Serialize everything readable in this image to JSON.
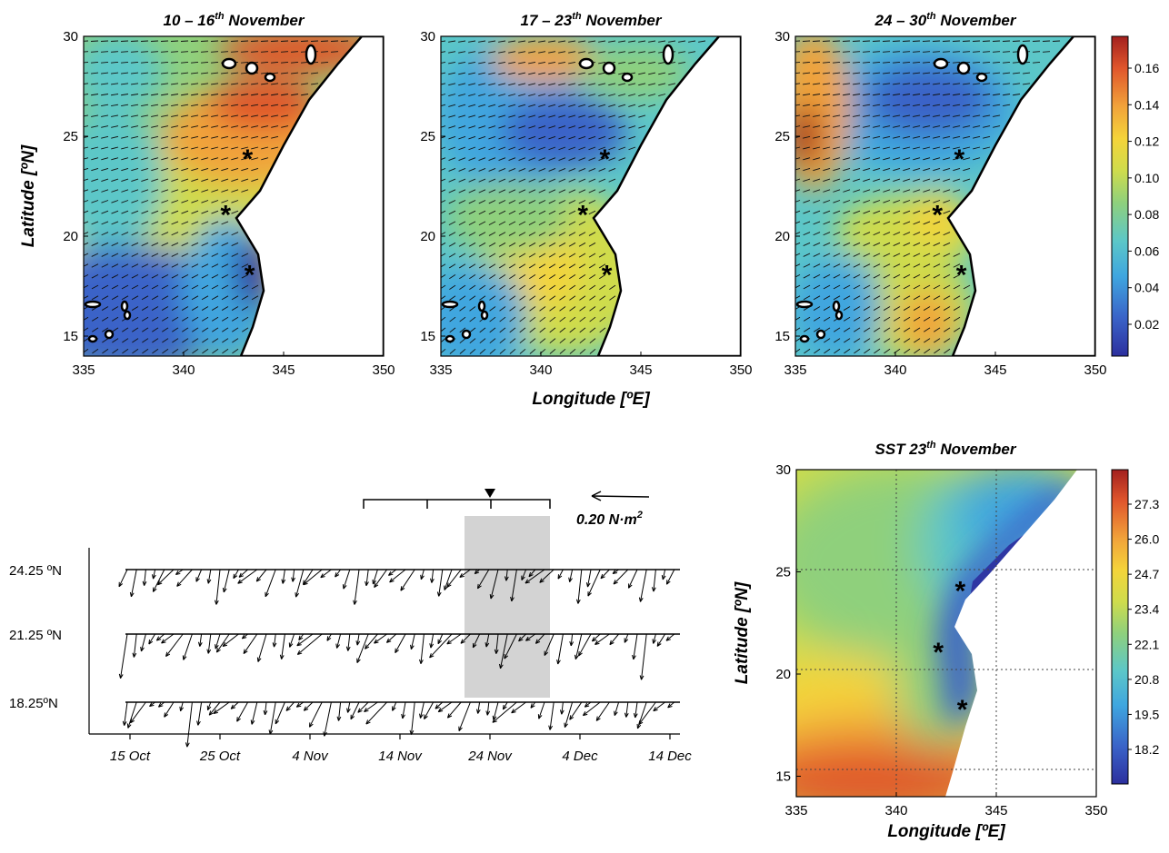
{
  "top_panels": [
    {
      "title_prefix": "10 – 16",
      "title_sup": "th",
      "title_suffix": " November"
    },
    {
      "title_prefix": "17 – 23",
      "title_sup": "th",
      "title_suffix": " November"
    },
    {
      "title_prefix": "24 –  30",
      "title_sup": "th",
      "title_suffix": " November"
    }
  ],
  "map_axes": {
    "xlabel": "Longitude  [ºE]",
    "ylabel": "Latitude  [ºN]",
    "x_ticks": [
      "335",
      "340",
      "345",
      "350"
    ],
    "y_ticks": [
      "15",
      "20",
      "25",
      "30"
    ]
  },
  "stress_colorbar_ticks": [
    "0.02",
    "0.04",
    "0.06",
    "0.08",
    "0.10",
    "0.12",
    "0.14",
    "0.16"
  ],
  "sst_panel": {
    "title_prefix": "SST  23",
    "title_sup": "th",
    "title_suffix": " November",
    "colorbar_ticks": [
      "18.2",
      "19.5",
      "20.8",
      "22.1",
      "23.4",
      "24.7",
      "26.0",
      "27.3"
    ]
  },
  "stick_plot": {
    "rows": [
      "24.25 ºN",
      "21.25 ºN",
      "18.25ºN"
    ],
    "x_ticks": [
      "15 Oct",
      "25 Oct",
      "4 Nov",
      "14 Nov",
      "24 Nov",
      "4 Dec",
      "14 Dec"
    ],
    "scale_label": "0.20 N·m",
    "scale_label_sup": "2"
  },
  "colors": {
    "colormap": [
      "#2c2f9e",
      "#3a63c8",
      "#3fa6df",
      "#5cc7c8",
      "#8fd07c",
      "#cfdc4c",
      "#f4d43a",
      "#f1a33a",
      "#e0562c",
      "#a3201e"
    ],
    "land": "#ffffff",
    "highlight_band": "#d3d3d3"
  },
  "chart_data": [
    {
      "type": "heatmap",
      "title": "10 – 16th November",
      "xlabel": "",
      "ylabel": "Latitude [ºN]",
      "xlim": [
        335,
        350
      ],
      "ylim": [
        14,
        30
      ],
      "clim": [
        0,
        0.17
      ],
      "zones": [
        {
          "lon": 344,
          "lat": 27,
          "value": 0.14
        },
        {
          "lon": 342,
          "lat": 25.5,
          "value": 0.13
        },
        {
          "lon": 340,
          "lat": 24,
          "value": 0.11
        },
        {
          "lon": 337,
          "lat": 22,
          "value": 0.08
        },
        {
          "lon": 343,
          "lat": 19.5,
          "value": 0.02
        },
        {
          "lon": 337,
          "lat": 16,
          "value": 0.04
        }
      ],
      "markers": [
        {
          "lon": 343.2,
          "lat": 24.0
        },
        {
          "lon": 342.1,
          "lat": 21.2
        },
        {
          "lon": 343.3,
          "lat": 18.2
        }
      ]
    },
    {
      "type": "heatmap",
      "title": "17 – 23th November",
      "xlabel": "Longitude [ºE]",
      "ylabel": "",
      "xlim": [
        335,
        350
      ],
      "ylim": [
        14,
        30
      ],
      "clim": [
        0,
        0.17
      ],
      "zones": [
        {
          "lon": 340.5,
          "lat": 25.5,
          "value": 0.02
        },
        {
          "lon": 340,
          "lat": 20,
          "value": 0.1
        },
        {
          "lon": 341,
          "lat": 28.5,
          "value": 0.12
        },
        {
          "lon": 337,
          "lat": 17,
          "value": 0.06
        }
      ],
      "markers": [
        {
          "lon": 343.2,
          "lat": 24.0
        },
        {
          "lon": 342.1,
          "lat": 21.2
        },
        {
          "lon": 343.3,
          "lat": 18.2
        }
      ]
    },
    {
      "type": "heatmap",
      "title": "24 – 30th November",
      "xlabel": "",
      "ylabel": "",
      "xlim": [
        335,
        350
      ],
      "ylim": [
        14,
        30
      ],
      "clim": [
        0,
        0.17
      ],
      "zones": [
        {
          "lon": 335.4,
          "lat": 25,
          "value": 0.16
        },
        {
          "lon": 341.5,
          "lat": 26.5,
          "value": 0.03
        },
        {
          "lon": 341.5,
          "lat": 21.5,
          "value": 0.1
        },
        {
          "lon": 341.7,
          "lat": 15.5,
          "value": 0.12
        }
      ],
      "markers": [
        {
          "lon": 343.2,
          "lat": 24.0
        },
        {
          "lon": 342.1,
          "lat": 21.2
        },
        {
          "lon": 343.3,
          "lat": 18.2
        }
      ]
    },
    {
      "type": "heatmap",
      "title": "SST 23th November",
      "xlabel": "Longitude [ºE]",
      "ylabel": "Latitude [ºN]",
      "xlim": [
        335,
        350
      ],
      "ylim": [
        14,
        30
      ],
      "clim": [
        17.5,
        27.9
      ],
      "grid": true,
      "zones": [
        {
          "lon": 337,
          "lat": 15,
          "value": 27.0
        },
        {
          "lon": 341,
          "lat": 23,
          "value": 23.0
        },
        {
          "lon": 343,
          "lat": 21,
          "value": 17.8
        },
        {
          "lon": 346,
          "lat": 27,
          "value": 18.5
        }
      ],
      "markers": [
        {
          "lon": 343.2,
          "lat": 24.2
        },
        {
          "lon": 342.1,
          "lat": 21.2
        },
        {
          "lon": 343.3,
          "lat": 18.4
        }
      ]
    },
    {
      "type": "line",
      "title": "",
      "xlabel": "",
      "ylabel": "",
      "xlim": [
        "15 Oct",
        "14 Dec"
      ],
      "series": [
        {
          "name": "24.25 ºN"
        },
        {
          "name": "21.25 ºN"
        },
        {
          "name": "18.25ºN"
        }
      ],
      "vector_scale": 0.2,
      "highlight_period": [
        "21 Nov",
        "2 Dec"
      ],
      "brackets": [
        [
          "10 Nov",
          "17 Nov"
        ],
        [
          "17 Nov",
          "24 Nov"
        ],
        [
          "24 Nov",
          "2 Dec"
        ]
      ],
      "marker_date": "24 Nov"
    }
  ]
}
